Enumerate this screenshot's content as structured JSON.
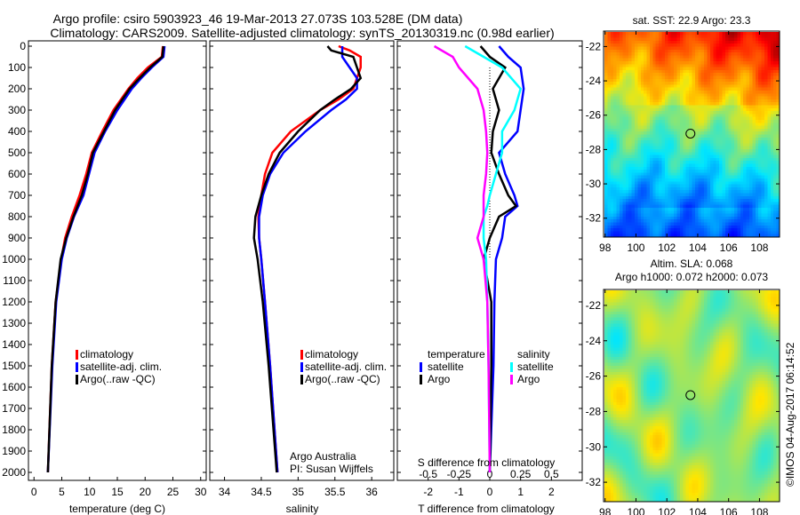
{
  "title": {
    "line1": "Argo profile: csiro 5903923_46 19-Mar-2013 27.073S 103.528E (DM data)",
    "line2": "Climatology: CARS2009. Satellite-adjusted climatology: synTS_20130319.nc (0.98d earlier)"
  },
  "depth_ticks": [
    0,
    100,
    200,
    300,
    400,
    500,
    600,
    700,
    800,
    900,
    1000,
    1100,
    1200,
    1300,
    1400,
    1500,
    1600,
    1700,
    1800,
    1900,
    2000
  ],
  "colors": {
    "climatology": "#ff0000",
    "satellite": "#0000ff",
    "argo": "#000000",
    "sal_satellite": "#00ffff",
    "sal_argo": "#ff00ff"
  },
  "legend": {
    "climatology": "climatology",
    "satellite": "satellite-adj. clim.",
    "argo": "Argo(..raw -QC)"
  },
  "legend3": {
    "temperature": "temperature",
    "salinity": "salinity",
    "satellite": "satellite",
    "argo": "Argo"
  },
  "credit": {
    "line1": "Argo Australia",
    "line2": "PI: Susan Wijffels"
  },
  "stamp": "©IMOS 04-Aug-2017 06:14:52",
  "chart_data": [
    {
      "type": "line",
      "title": "",
      "xlabel": "temperature (deg C)",
      "ylabel": "",
      "xlim": [
        -1,
        31
      ],
      "ylim": [
        2050,
        0
      ],
      "xticks": [
        0,
        5,
        10,
        15,
        20,
        25,
        30
      ],
      "depth": [
        0,
        50,
        100,
        150,
        200,
        300,
        400,
        500,
        600,
        700,
        800,
        900,
        1000,
        1200,
        1500,
        2000
      ],
      "series": [
        {
          "name": "climatology",
          "values": [
            23.2,
            23,
            20.5,
            18.6,
            17.0,
            14.3,
            12.3,
            10.4,
            9.4,
            8.2,
            6.8,
            5.6,
            4.9,
            3.9,
            3.2,
            2.5
          ]
        },
        {
          "name": "satellite-adj. clim.",
          "values": [
            23.5,
            23.3,
            21.2,
            19.3,
            17.6,
            15.0,
            12.8,
            10.9,
            9.9,
            8.9,
            7.2,
            5.9,
            5.0,
            4.0,
            3.3,
            2.5
          ]
        },
        {
          "name": "Argo(..raw -QC)",
          "values": [
            23.3,
            23.1,
            20.9,
            19.0,
            17.2,
            14.6,
            12.6,
            10.6,
            9.7,
            8.6,
            7.1,
            5.8,
            4.8,
            3.9,
            3.2,
            2.5
          ]
        }
      ]
    },
    {
      "type": "line",
      "xlabel": "salinity",
      "xlim": [
        33.8,
        36.3
      ],
      "ylim": [
        2050,
        0
      ],
      "xticks": [
        34,
        34.5,
        35,
        35.5,
        36
      ],
      "depth": [
        0,
        20,
        50,
        100,
        150,
        200,
        250,
        300,
        400,
        500,
        600,
        700,
        800,
        900,
        1000,
        1200,
        1500,
        2000
      ],
      "series": [
        {
          "name": "climatology",
          "values": [
            35.55,
            35.7,
            35.85,
            35.85,
            35.8,
            35.75,
            35.55,
            35.3,
            34.9,
            34.65,
            34.55,
            34.5,
            34.46,
            34.47,
            34.5,
            34.55,
            34.62,
            34.72
          ]
        },
        {
          "name": "satellite-adj. clim.",
          "values": [
            35.6,
            35.6,
            35.6,
            35.7,
            35.8,
            35.8,
            35.65,
            35.45,
            35.1,
            34.8,
            34.62,
            34.52,
            34.47,
            34.47,
            34.5,
            34.55,
            34.62,
            34.72
          ]
        },
        {
          "name": "Argo(..raw -QC)",
          "values": [
            35.4,
            35.45,
            35.75,
            35.8,
            35.85,
            35.72,
            35.5,
            35.3,
            35.0,
            34.75,
            34.6,
            34.5,
            34.42,
            34.4,
            34.45,
            34.52,
            34.6,
            34.71
          ]
        }
      ]
    },
    {
      "type": "line",
      "xlabel": "T difference from climatology",
      "x2label": "S difference from climatology",
      "xlim": [
        -3,
        3
      ],
      "x2lim": [
        -0.75,
        0.75
      ],
      "ylim": [
        2050,
        0
      ],
      "xticks": [
        -2,
        -1,
        0,
        1,
        2
      ],
      "x2ticks": [
        -0.5,
        -0.25,
        0,
        0.25,
        0.5
      ],
      "x2ticklabels": [
        "-0.5",
        "-0.25",
        "0",
        "0.25",
        "0.5"
      ],
      "depth": [
        0,
        50,
        100,
        200,
        300,
        400,
        500,
        600,
        700,
        750,
        800,
        900,
        1000,
        1200,
        1500,
        2000
      ],
      "series": [
        {
          "name": "temperature satellite",
          "axis": "T",
          "values": [
            0.3,
            0.6,
            1.0,
            1.1,
            1.0,
            0.9,
            0.3,
            0.5,
            0.8,
            0.9,
            0.5,
            0.4,
            0.2,
            0.15,
            0.12,
            0.0
          ]
        },
        {
          "name": "temperature Argo",
          "axis": "T",
          "values": [
            -0.3,
            0.0,
            0.5,
            0.1,
            0.3,
            0.1,
            0.05,
            0.3,
            0.6,
            0.85,
            0.3,
            0.0,
            -0.2,
            0.05,
            0.05,
            0.0
          ]
        },
        {
          "name": "salinity satellite",
          "axis": "S",
          "values": [
            -0.2,
            -0.05,
            0.1,
            0.25,
            0.2,
            0.1,
            0.1,
            0.05,
            0.0,
            -0.02,
            -0.05,
            -0.05,
            -0.03,
            -0.02,
            -0.01,
            0.0
          ]
        },
        {
          "name": "salinity Argo",
          "axis": "S",
          "values": [
            -0.45,
            -0.3,
            -0.25,
            -0.1,
            -0.05,
            -0.03,
            -0.02,
            -0.03,
            -0.05,
            -0.05,
            -0.05,
            -0.1,
            -0.05,
            -0.02,
            -0.01,
            0.0
          ]
        }
      ]
    },
    {
      "type": "heatmap",
      "title": "sat. SST: 22.9 Argo: 23.3",
      "xticks": [
        98,
        100,
        102,
        104,
        106,
        108
      ],
      "yticks": [
        -22,
        -24,
        -26,
        -28,
        -30,
        -32
      ],
      "xlim": [
        97.9,
        109.3
      ],
      "ylim": [
        -33.1,
        -21.1
      ],
      "marker": [
        103.528,
        -27.073
      ]
    },
    {
      "type": "heatmap",
      "title": "Altim. SLA: 0.068",
      "subtitle": "Argo h1000: 0.072 h2000: 0.073",
      "xticks": [
        98,
        100,
        102,
        104,
        106,
        108
      ],
      "yticks": [
        -22,
        -24,
        -26,
        -28,
        -30,
        -32
      ],
      "xlim": [
        97.9,
        109.3
      ],
      "ylim": [
        -33.1,
        -21.1
      ],
      "marker": [
        103.528,
        -27.073
      ]
    }
  ]
}
